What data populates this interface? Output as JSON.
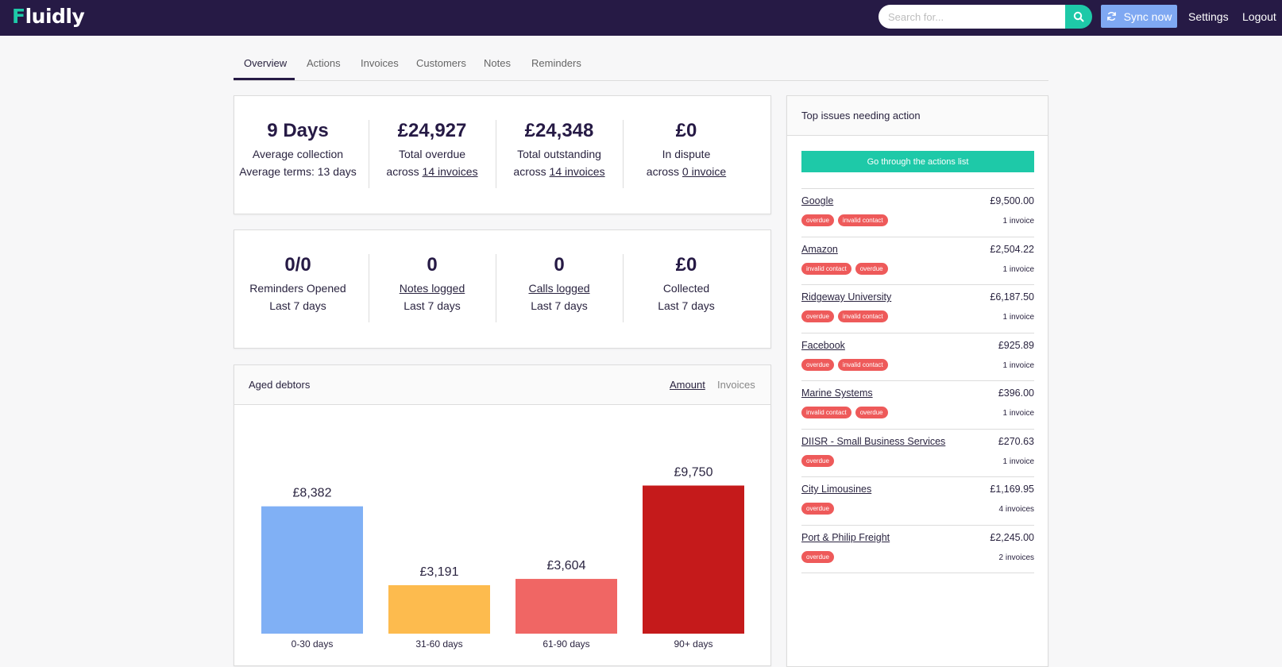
{
  "brand": {
    "name": "Fluidly",
    "accent": "#1ec9a8",
    "nav_bg": "#261a45"
  },
  "topbar": {
    "search_placeholder": "Search for...",
    "sync_label": "Sync now",
    "settings_label": "Settings",
    "logout_label": "Logout",
    "search_icon": "magnifier-icon",
    "sync_icon": "refresh-icon"
  },
  "tabs": [
    "Overview",
    "Actions",
    "Invoices",
    "Customers",
    "Notes",
    "Reminders"
  ],
  "summary_stats": [
    {
      "value": "9 Days",
      "line1": "Average collection",
      "line2": "Average terms: 13 days"
    },
    {
      "value": "£24,927",
      "line1": "Total overdue",
      "line2_prefix": "across",
      "line2_link": "14 invoices"
    },
    {
      "value": "£24,348",
      "line1": "Total outstanding",
      "line2_prefix": "across",
      "line2_link": "14 invoices"
    },
    {
      "value": "£0",
      "line1": "In dispute",
      "line2_prefix": "across",
      "line2_link": "0 invoice"
    }
  ],
  "activity_stats": [
    {
      "value": "0/0",
      "line1": "Reminders Opened",
      "line2": "Last 7 days"
    },
    {
      "value": "0",
      "line1": "Notes logged",
      "line2": "Last 7 days"
    },
    {
      "value": "0",
      "line1": "Calls logged",
      "line2": "Last 7 days"
    },
    {
      "value": "£0",
      "line1": "Collected",
      "line2": "Last 7 days"
    }
  ],
  "aged_debtors": {
    "title": "Aged debtors",
    "toggle_amount": "Amount",
    "toggle_invoices": "Invoices"
  },
  "chart_data": {
    "type": "bar",
    "categories": [
      "0-30 days",
      "31-60 days",
      "61-90 days",
      "90+ days"
    ],
    "values": [
      8382,
      3191,
      3604,
      9750
    ],
    "labels": [
      "£8,382",
      "£3,191",
      "£3,604",
      "£9,750"
    ],
    "colors": [
      "#80b0f5",
      "#fdbb4e",
      "#f06664",
      "#c51a1b"
    ],
    "ylim": [
      0,
      11500
    ]
  },
  "issues": {
    "title": "Top issues needing action",
    "button_label": "Go through the actions list",
    "items": [
      {
        "name": "Google",
        "amount": "£9,500.00",
        "tags": [
          "overdue",
          "invalid contact"
        ],
        "count": "1 invoice"
      },
      {
        "name": "Amazon",
        "amount": "£2,504.22",
        "tags": [
          "invalid contact",
          "overdue"
        ],
        "count": "1 invoice"
      },
      {
        "name": "Ridgeway University",
        "amount": "£6,187.50",
        "tags": [
          "overdue",
          "invalid contact"
        ],
        "count": "1 invoice"
      },
      {
        "name": "Facebook",
        "amount": "£925.89",
        "tags": [
          "overdue",
          "invalid contact"
        ],
        "count": "1 invoice"
      },
      {
        "name": "Marine Systems",
        "amount": "£396.00",
        "tags": [
          "invalid contact",
          "overdue"
        ],
        "count": "1 invoice"
      },
      {
        "name": "DIISR - Small Business Services",
        "amount": "£270.63",
        "tags": [
          "overdue"
        ],
        "count": "1 invoice"
      },
      {
        "name": "City Limousines",
        "amount": "£1,169.95",
        "tags": [
          "overdue"
        ],
        "count": "4 invoices"
      },
      {
        "name": "Port & Philip Freight",
        "amount": "£2,245.00",
        "tags": [
          "overdue"
        ],
        "count": "2 invoices"
      }
    ]
  }
}
